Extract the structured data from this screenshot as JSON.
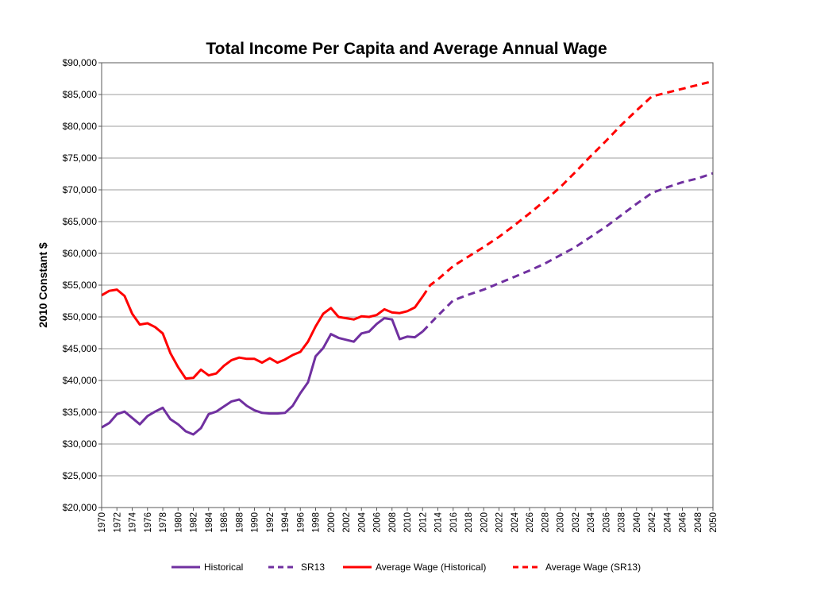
{
  "chart_data": {
    "type": "line",
    "title": "Total Income Per Capita and Average Annual Wage",
    "ylabel": "2010 Constant $",
    "xlabel": "",
    "xlim": [
      1970,
      2050
    ],
    "ylim": [
      20000,
      90000
    ],
    "ystep": 5000,
    "yticks": [
      "$20,000",
      "$25,000",
      "$30,000",
      "$35,000",
      "$40,000",
      "$45,000",
      "$50,000",
      "$55,000",
      "$60,000",
      "$65,000",
      "$70,000",
      "$75,000",
      "$80,000",
      "$85,000",
      "$90,000"
    ],
    "xticks": [
      "1970",
      "1972",
      "1974",
      "1976",
      "1978",
      "1980",
      "1982",
      "1984",
      "1986",
      "1988",
      "1990",
      "1992",
      "1994",
      "1996",
      "1998",
      "2000",
      "2002",
      "2004",
      "2006",
      "2008",
      "2010",
      "2012",
      "2014",
      "2016",
      "2018",
      "2020",
      "2022",
      "2024",
      "2026",
      "2028",
      "2030",
      "2032",
      "2034",
      "2036",
      "2038",
      "2040",
      "2042",
      "2044",
      "2046",
      "2048",
      "2050"
    ],
    "grid": true,
    "legend_position": "bottom",
    "series": [
      {
        "name": "Historical",
        "color": "#7030a0",
        "style": "solid",
        "x": [
          1970,
          1971,
          1972,
          1973,
          1974,
          1975,
          1976,
          1977,
          1978,
          1979,
          1980,
          1981,
          1982,
          1983,
          1984,
          1985,
          1986,
          1987,
          1988,
          1989,
          1990,
          1991,
          1992,
          1993,
          1994,
          1995,
          1996,
          1997,
          1998,
          1999,
          2000,
          2001,
          2002,
          2003,
          2004,
          2005,
          2006,
          2007,
          2008,
          2009,
          2010,
          2011,
          2012
        ],
        "y": [
          32600,
          33300,
          34700,
          35100,
          34100,
          33100,
          34400,
          35100,
          35700,
          33900,
          33100,
          32000,
          31500,
          32500,
          34700,
          35100,
          35900,
          36700,
          37000,
          36000,
          35300,
          34900,
          34800,
          34800,
          34900,
          36000,
          38000,
          39700,
          43800,
          45100,
          47300,
          46700,
          46400,
          46100,
          47400,
          47700,
          48900,
          49800,
          49600,
          46500,
          46900,
          46800,
          47700
        ],
        "y_note": ""
      },
      {
        "name": "SR13",
        "color": "#7030a0",
        "style": "dashed",
        "x": [
          2012,
          2014,
          2016,
          2018,
          2020,
          2022,
          2024,
          2026,
          2028,
          2030,
          2032,
          2034,
          2036,
          2038,
          2040,
          2042,
          2044,
          2046,
          2048,
          2050
        ],
        "y": [
          47700,
          50200,
          52600,
          53500,
          54300,
          55300,
          56300,
          57300,
          58400,
          59700,
          61000,
          62600,
          64200,
          66000,
          67800,
          69500,
          70400,
          71200,
          71800,
          72600
        ]
      },
      {
        "name": "Average Wage (Historical)",
        "color": "#ff0000",
        "style": "solid",
        "x": [
          1970,
          1971,
          1972,
          1973,
          1974,
          1975,
          1976,
          1977,
          1978,
          1979,
          1980,
          1981,
          1982,
          1983,
          1984,
          1985,
          1986,
          1987,
          1988,
          1989,
          1990,
          1991,
          1992,
          1993,
          1994,
          1995,
          1996,
          1997,
          1998,
          1999,
          2000,
          2001,
          2002,
          2003,
          2004,
          2005,
          2006,
          2007,
          2008,
          2009,
          2010,
          2011,
          2012
        ],
        "y": [
          53400,
          54100,
          54300,
          53300,
          50500,
          48800,
          49000,
          48400,
          47400,
          44300,
          42100,
          40300,
          40400,
          41700,
          40800,
          41100,
          42300,
          43200,
          43600,
          43400,
          43400,
          42800,
          43500,
          42800,
          43300,
          44000,
          44500,
          46100,
          48500,
          50500,
          51400,
          50000,
          49800,
          49600,
          50100,
          50000,
          50300,
          51200,
          50700,
          50600,
          50900,
          51500,
          53200
        ]
      },
      {
        "name": "Average Wage (SR13)",
        "color": "#ff0000",
        "style": "dashed",
        "x": [
          2012,
          2013,
          2014,
          2016,
          2018,
          2020,
          2022,
          2024,
          2026,
          2028,
          2030,
          2032,
          2034,
          2036,
          2038,
          2040,
          2042,
          2044,
          2046,
          2048,
          2050
        ],
        "y": [
          53200,
          55000,
          55900,
          58000,
          59500,
          61000,
          62600,
          64400,
          66300,
          68300,
          70400,
          72800,
          75300,
          77700,
          80200,
          82500,
          84700,
          85300,
          85900,
          86500,
          87100
        ]
      }
    ]
  }
}
